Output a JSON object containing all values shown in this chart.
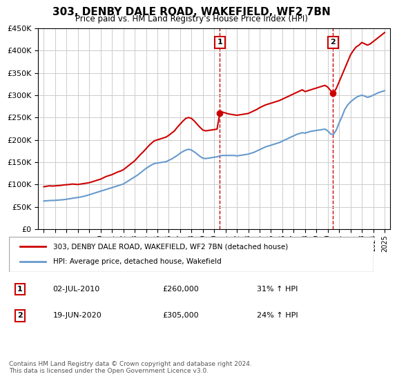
{
  "title": "303, DENBY DALE ROAD, WAKEFIELD, WF2 7BN",
  "subtitle": "Price paid vs. HM Land Registry's House Price Index (HPI)",
  "legend_line1": "303, DENBY DALE ROAD, WAKEFIELD, WF2 7BN (detached house)",
  "legend_line2": "HPI: Average price, detached house, Wakefield",
  "sale1_label": "1",
  "sale1_date": "02-JUL-2010",
  "sale1_price": "£260,000",
  "sale1_hpi": "31% ↑ HPI",
  "sale1_x": 2010.5,
  "sale1_y": 260000,
  "sale2_label": "2",
  "sale2_date": "19-JUN-2020",
  "sale2_price": "£305,000",
  "sale2_hpi": "24% ↑ HPI",
  "sale2_x": 2020.46,
  "sale2_y": 305000,
  "footer": "Contains HM Land Registry data © Crown copyright and database right 2024.\nThis data is licensed under the Open Government Licence v3.0.",
  "ylim": [
    0,
    450000
  ],
  "xlim": [
    1994.5,
    2025.5
  ],
  "yticks": [
    0,
    50000,
    100000,
    150000,
    200000,
    250000,
    300000,
    350000,
    400000,
    450000
  ],
  "ytick_labels": [
    "£0",
    "£50K",
    "£100K",
    "£150K",
    "£200K",
    "£250K",
    "£300K",
    "£350K",
    "£400K",
    "£450K"
  ],
  "xticks": [
    1995,
    1996,
    1997,
    1998,
    1999,
    2000,
    2001,
    2002,
    2003,
    2004,
    2005,
    2006,
    2007,
    2008,
    2009,
    2010,
    2011,
    2012,
    2013,
    2014,
    2015,
    2016,
    2017,
    2018,
    2019,
    2020,
    2021,
    2022,
    2023,
    2024,
    2025
  ],
  "house_color": "#cc0000",
  "hpi_color": "#6699cc",
  "background_color": "#ffffff",
  "grid_color": "#cccccc",
  "house_prices_x": [
    1995.0,
    1995.25,
    1995.5,
    1995.75,
    1996.0,
    1996.25,
    1996.5,
    1996.75,
    1997.0,
    1997.25,
    1997.5,
    1997.75,
    1998.0,
    1998.25,
    1998.5,
    1998.75,
    1999.0,
    1999.25,
    1999.5,
    1999.75,
    2000.0,
    2000.25,
    2000.5,
    2000.75,
    2001.0,
    2001.25,
    2001.5,
    2001.75,
    2002.0,
    2002.25,
    2002.5,
    2002.75,
    2003.0,
    2003.25,
    2003.5,
    2003.75,
    2004.0,
    2004.25,
    2004.5,
    2004.75,
    2005.0,
    2005.25,
    2005.5,
    2005.75,
    2006.0,
    2006.25,
    2006.5,
    2006.75,
    2007.0,
    2007.25,
    2007.5,
    2007.75,
    2008.0,
    2008.25,
    2008.5,
    2008.75,
    2009.0,
    2009.25,
    2009.5,
    2009.75,
    2010.0,
    2010.25,
    2010.5,
    2010.75,
    2011.0,
    2011.25,
    2011.5,
    2011.75,
    2012.0,
    2012.25,
    2012.5,
    2012.75,
    2013.0,
    2013.25,
    2013.5,
    2013.75,
    2014.0,
    2014.25,
    2014.5,
    2014.75,
    2015.0,
    2015.25,
    2015.5,
    2015.75,
    2016.0,
    2016.25,
    2016.5,
    2016.75,
    2017.0,
    2017.25,
    2017.5,
    2017.75,
    2018.0,
    2018.25,
    2018.5,
    2018.75,
    2019.0,
    2019.25,
    2019.5,
    2019.75,
    2020.0,
    2020.25,
    2020.5,
    2020.75,
    2021.0,
    2021.25,
    2021.5,
    2021.75,
    2022.0,
    2022.25,
    2022.5,
    2022.75,
    2023.0,
    2023.25,
    2023.5,
    2023.75,
    2024.0,
    2024.25,
    2024.5,
    2024.75,
    2025.0
  ],
  "house_prices_y": [
    95000,
    96000,
    97000,
    96500,
    97000,
    97500,
    98000,
    99000,
    99500,
    100000,
    101000,
    100500,
    100000,
    101000,
    102000,
    103000,
    104000,
    106000,
    108000,
    110000,
    112000,
    115000,
    118000,
    120000,
    122000,
    125000,
    128000,
    130000,
    133000,
    138000,
    143000,
    148000,
    153000,
    160000,
    167000,
    173000,
    180000,
    187000,
    193000,
    198000,
    200000,
    202000,
    204000,
    206000,
    210000,
    215000,
    220000,
    228000,
    235000,
    242000,
    248000,
    250000,
    248000,
    242000,
    235000,
    228000,
    222000,
    220000,
    221000,
    222000,
    223000,
    224000,
    260000,
    262000,
    260000,
    258000,
    257000,
    256000,
    255000,
    256000,
    257000,
    258000,
    259000,
    262000,
    265000,
    268000,
    272000,
    275000,
    278000,
    280000,
    282000,
    284000,
    286000,
    288000,
    291000,
    294000,
    297000,
    300000,
    303000,
    306000,
    309000,
    312000,
    308000,
    310000,
    312000,
    314000,
    316000,
    318000,
    320000,
    322000,
    318000,
    310000,
    305000,
    315000,
    330000,
    345000,
    360000,
    375000,
    390000,
    400000,
    408000,
    412000,
    418000,
    415000,
    412000,
    415000,
    420000,
    425000,
    430000,
    435000,
    440000
  ],
  "hpi_x": [
    1995.0,
    1995.25,
    1995.5,
    1995.75,
    1996.0,
    1996.25,
    1996.5,
    1996.75,
    1997.0,
    1997.25,
    1997.5,
    1997.75,
    1998.0,
    1998.25,
    1998.5,
    1998.75,
    1999.0,
    1999.25,
    1999.5,
    1999.75,
    2000.0,
    2000.25,
    2000.5,
    2000.75,
    2001.0,
    2001.25,
    2001.5,
    2001.75,
    2002.0,
    2002.25,
    2002.5,
    2002.75,
    2003.0,
    2003.25,
    2003.5,
    2003.75,
    2004.0,
    2004.25,
    2004.5,
    2004.75,
    2005.0,
    2005.25,
    2005.5,
    2005.75,
    2006.0,
    2006.25,
    2006.5,
    2006.75,
    2007.0,
    2007.25,
    2007.5,
    2007.75,
    2008.0,
    2008.25,
    2008.5,
    2008.75,
    2009.0,
    2009.25,
    2009.5,
    2009.75,
    2010.0,
    2010.25,
    2010.5,
    2010.75,
    2011.0,
    2011.25,
    2011.5,
    2011.75,
    2012.0,
    2012.25,
    2012.5,
    2012.75,
    2013.0,
    2013.25,
    2013.5,
    2013.75,
    2014.0,
    2014.25,
    2014.5,
    2014.75,
    2015.0,
    2015.25,
    2015.5,
    2015.75,
    2016.0,
    2016.25,
    2016.5,
    2016.75,
    2017.0,
    2017.25,
    2017.5,
    2017.75,
    2018.0,
    2018.25,
    2018.5,
    2018.75,
    2019.0,
    2019.25,
    2019.5,
    2019.75,
    2020.0,
    2020.25,
    2020.5,
    2020.75,
    2021.0,
    2021.25,
    2021.5,
    2021.75,
    2022.0,
    2022.25,
    2022.5,
    2022.75,
    2023.0,
    2023.25,
    2023.5,
    2023.75,
    2024.0,
    2024.25,
    2024.5,
    2024.75,
    2025.0
  ],
  "hpi_y": [
    63000,
    63500,
    64000,
    64200,
    64500,
    65000,
    65500,
    66000,
    67000,
    68000,
    69000,
    70000,
    71000,
    72000,
    73500,
    75000,
    77000,
    79000,
    81000,
    83000,
    85000,
    87000,
    89000,
    91000,
    93000,
    95000,
    97000,
    99000,
    101000,
    105000,
    109000,
    113000,
    117000,
    121000,
    126000,
    131000,
    136000,
    140000,
    144000,
    147000,
    148000,
    149000,
    150000,
    151000,
    154000,
    157000,
    161000,
    165000,
    170000,
    174000,
    177000,
    179000,
    177000,
    173000,
    168000,
    163000,
    159000,
    158000,
    159000,
    160000,
    161000,
    162000,
    164000,
    165000,
    165000,
    165000,
    165000,
    165000,
    164000,
    165000,
    166000,
    167000,
    168000,
    170000,
    172000,
    175000,
    178000,
    181000,
    184000,
    186000,
    188000,
    190000,
    192000,
    194000,
    197000,
    200000,
    203000,
    206000,
    209000,
    212000,
    214000,
    216000,
    215000,
    217000,
    219000,
    220000,
    221000,
    222000,
    223000,
    224000,
    220000,
    213000,
    212000,
    222000,
    238000,
    252000,
    268000,
    278000,
    285000,
    290000,
    295000,
    298000,
    300000,
    298000,
    295000,
    297000,
    300000,
    303000,
    306000,
    308000,
    310000
  ]
}
